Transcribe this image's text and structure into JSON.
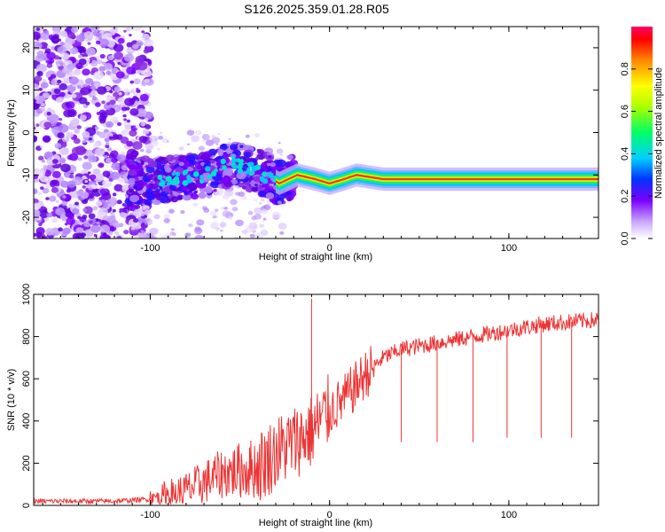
{
  "title": "S126.2025.359.01.28.R05",
  "chart_data": [
    {
      "type": "heatmap",
      "xlabel": "Height of straight line (km)",
      "ylabel": "Frequency (Hz)",
      "xlim": [
        -165,
        150
      ],
      "ylim": [
        -25,
        25
      ],
      "x_ticks": [
        -100,
        0,
        100
      ],
      "y_ticks": [
        -20,
        -10,
        0,
        10,
        20
      ],
      "colorbar": {
        "label": "Normalized spectral amplitude",
        "range": [
          0,
          1
        ],
        "ticks": [
          "0.0",
          "0.2",
          "0.4",
          "0.6",
          "0.8"
        ],
        "tick_values": [
          0.0,
          0.2,
          0.4,
          0.6,
          0.8
        ]
      },
      "ridge": {
        "x": [
          -130,
          -110,
          -90,
          -70,
          -55,
          -40,
          -28,
          -18,
          -8,
          0,
          8,
          15,
          30,
          60,
          100,
          150
        ],
        "y": [
          -12,
          -12,
          -11,
          -10,
          -7,
          -9,
          -12,
          -10,
          -11,
          -12,
          -11,
          -10,
          -11,
          -11,
          -11,
          -11
        ]
      }
    },
    {
      "type": "line",
      "xlabel": "Height of straight line (km)",
      "ylabel": "SNR (10 * v/v)",
      "xlim": [
        -165,
        150
      ],
      "ylim": [
        0,
        1000
      ],
      "x_ticks": [
        -100,
        0,
        100
      ],
      "y_ticks": [
        0,
        200,
        400,
        600,
        800,
        1000
      ],
      "color": "#ee3333",
      "envelope": {
        "x": [
          -165,
          -120,
          -100,
          -80,
          -60,
          -40,
          -30,
          -20,
          -10,
          0,
          5,
          10,
          20,
          30,
          40,
          60,
          80,
          100,
          120,
          150
        ],
        "y": [
          20,
          20,
          30,
          70,
          150,
          180,
          250,
          300,
          350,
          450,
          480,
          520,
          620,
          700,
          740,
          770,
          800,
          830,
          860,
          880
        ]
      },
      "spikes": [
        {
          "x": -10,
          "y": 980
        },
        {
          "x": 40,
          "y": 300
        },
        {
          "x": 60,
          "y": 300
        },
        {
          "x": 80,
          "y": 300
        },
        {
          "x": 99,
          "y": 320
        },
        {
          "x": 118,
          "y": 320
        },
        {
          "x": 135,
          "y": 320
        }
      ]
    }
  ]
}
